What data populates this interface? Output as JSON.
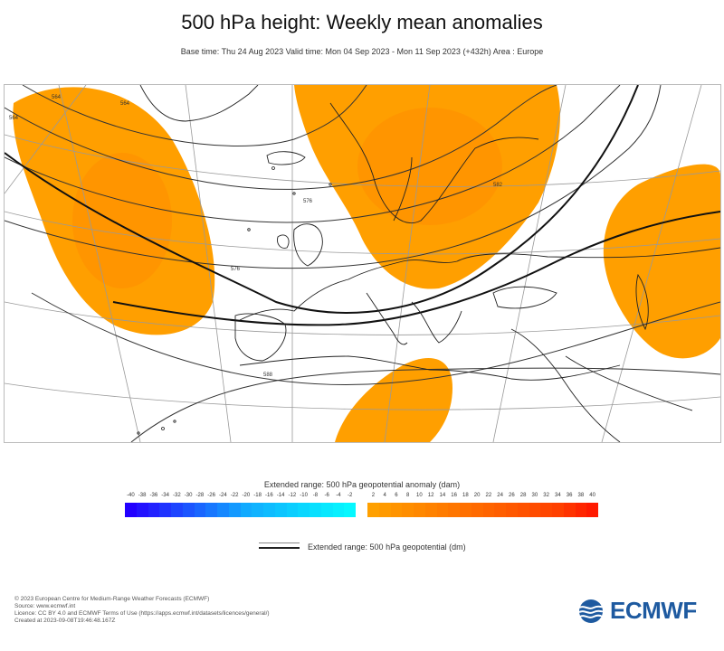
{
  "header": {
    "title": "500 hPa height: Weekly mean anomalies",
    "subtitle": "Base time: Thu 24 Aug 2023 Valid time: Mon 04 Sep 2023 - Mon 11 Sep 2023 (+432h) Area : Europe"
  },
  "map": {
    "contour_labels": [
      "564",
      "564",
      "564",
      "576",
      "588",
      "582",
      "576"
    ],
    "anomaly_colors": {
      "positive": "#ff9f00",
      "negative": "#33aaff"
    }
  },
  "colorbar": {
    "title": "Extended range: 500 hPa geopotential anomaly (dam)",
    "negative_labels": [
      "-40",
      "-38",
      "-36",
      "-34",
      "-32",
      "-30",
      "-28",
      "-26",
      "-24",
      "-22",
      "-20",
      "-18",
      "-16",
      "-14",
      "-12",
      "-10",
      "-8",
      "-6",
      "-4",
      "-2"
    ],
    "positive_labels": [
      "2",
      "4",
      "6",
      "8",
      "10",
      "12",
      "14",
      "16",
      "18",
      "20",
      "22",
      "24",
      "26",
      "28",
      "30",
      "32",
      "34",
      "36",
      "38",
      "40"
    ],
    "negative_colors": [
      "#2200ff",
      "#2212ff",
      "#2222ff",
      "#1f33ff",
      "#1d44ff",
      "#1b55ff",
      "#1966ff",
      "#1777ff",
      "#1588ff",
      "#1399ff",
      "#11aaff",
      "#10b3ff",
      "#0ebcff",
      "#0cc5ff",
      "#0bceff",
      "#0ad7ff",
      "#09e0ff",
      "#08e8ff",
      "#07f0ff",
      "#06f8ff"
    ],
    "positive_colors": [
      "#ffa000",
      "#ff9a00",
      "#ff9400",
      "#ff8e00",
      "#ff8800",
      "#ff8200",
      "#ff7c00",
      "#ff7600",
      "#ff7000",
      "#ff6a00",
      "#ff6400",
      "#ff5e00",
      "#ff5800",
      "#ff5200",
      "#ff4c00",
      "#ff4600",
      "#ff4000",
      "#ff3300",
      "#ff2600",
      "#ff1a00"
    ]
  },
  "legend": {
    "line_label": "Extended range: 500 hPa geopotential (dm)"
  },
  "footer": {
    "lines": [
      "© 2023 European Centre for Medium-Range Weather Forecasts (ECMWF)",
      "Source: www.ecmwf.int",
      "Licence: CC BY 4.0 and ECMWF Terms of Use (https://apps.ecmwf.int/datasets/licences/general/)",
      "Created at 2023-09-08T19:46:48.167Z"
    ],
    "logo_text": "ECMWF",
    "logo_color": "#1e5aa0"
  }
}
